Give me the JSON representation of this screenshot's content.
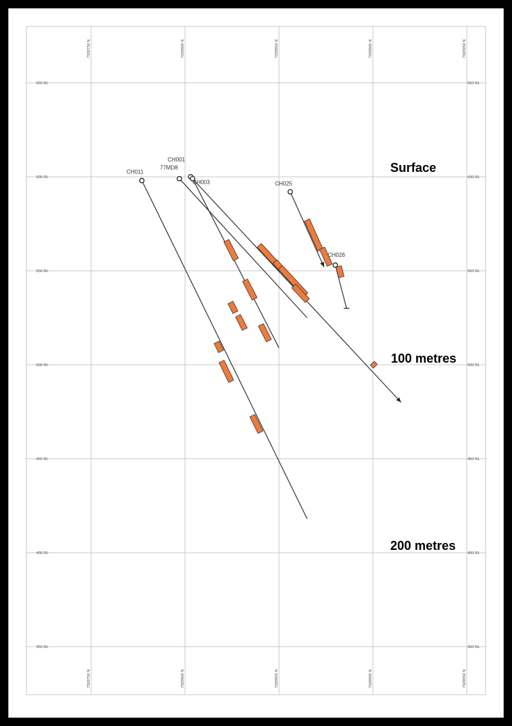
{
  "section": {
    "northing_labels": [
      "7509750 N",
      "7509800 N",
      "7509850 N",
      "7509900 N",
      "7509950 N"
    ],
    "rl_labels": [
      "650 RL",
      "600 RL",
      "550 RL",
      "500 RL",
      "450 RL",
      "400 RL",
      "350 RL"
    ],
    "annotations": {
      "surface": "Surface",
      "depth_100": "100 metres",
      "depth_200": "200 metres"
    },
    "holes": [
      {
        "id": "CH011",
        "label": "CH011",
        "collar": [
          7509777,
          598
        ],
        "toe": [
          7509865,
          418
        ],
        "intervals": [
          [
            7509817,
            512,
            7509819,
            507
          ],
          [
            7509820,
            502,
            7509824,
            491
          ],
          [
            7509836,
            473,
            7509840,
            464
          ]
        ]
      },
      {
        "id": "77MD8",
        "label": "77MD8",
        "collar": [
          7509797,
          599
        ],
        "toe": [
          7509865,
          525
        ],
        "intervals": [
          [
            7509839,
            563,
            7509852,
            551
          ],
          [
            7509848,
            555,
            7509864,
            537
          ]
        ]
      },
      {
        "id": "CH001",
        "label": "CH001",
        "collar": [
          7509803,
          600
        ],
        "toe": [
          7509915,
          480
        ],
        "intervals": [
          [
            7509851,
            552,
            7509864,
            537
          ],
          [
            7509858,
            542,
            7509865,
            534
          ],
          [
            7509900,
            501,
            7509901,
            499
          ]
        ]
      },
      {
        "id": "CH003",
        "label": "CH003",
        "collar": [
          7509804,
          599
        ],
        "toe": [
          7509850,
          509
        ],
        "intervals": [
          [
            7509822,
            566,
            7509827,
            556
          ],
          [
            7509832,
            545,
            7509837,
            535
          ],
          [
            7509824,
            533,
            7509827,
            528
          ],
          [
            7509828,
            526,
            7509832,
            519
          ],
          [
            7509840,
            521,
            7509845,
            513
          ]
        ]
      },
      {
        "id": "CH025",
        "label": "CH025",
        "collar": [
          7509856,
          592
        ],
        "toe": [
          7509874,
          552
        ],
        "intervals": [
          [
            7509865,
            577,
            7509872,
            561
          ],
          [
            7509873,
            562,
            7509877,
            553
          ]
        ]
      },
      {
        "id": "CH026",
        "label": "CH026",
        "collar": [
          7509880,
          553
        ],
        "toe": [
          7509886,
          530
        ],
        "intervals": [
          [
            7509881,
            552,
            7509884,
            547
          ]
        ]
      }
    ]
  }
}
